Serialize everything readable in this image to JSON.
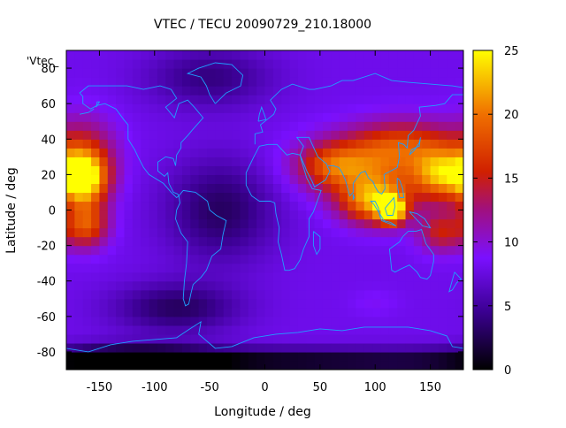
{
  "title": "VTEC / TECU 20090729_210.18000",
  "legend_key": "'Vtec_",
  "xlabel": "Longitude / deg",
  "ylabel": "Latitude / deg",
  "x_ticks": [
    "-150",
    "-100",
    "-50",
    "0",
    "50",
    "100",
    "150"
  ],
  "y_ticks": [
    "80",
    "60",
    "40",
    "20",
    "0",
    "-20",
    "-40",
    "-60",
    "-80"
  ],
  "colorbar_ticks": [
    "25",
    "20",
    "15",
    "10",
    "5",
    "0"
  ],
  "chart_data": {
    "type": "heatmap",
    "title": "VTEC / TECU 20090729_210.18000",
    "xlabel": "Longitude / deg",
    "ylabel": "Latitude / deg",
    "xlim": [
      -180,
      180
    ],
    "ylim": [
      -90,
      90
    ],
    "x_tick_values": [
      -150,
      -100,
      -50,
      0,
      50,
      100,
      150
    ],
    "y_tick_values": [
      80,
      60,
      40,
      20,
      0,
      -20,
      -40,
      -60,
      -80
    ],
    "color_range": [
      0,
      25
    ],
    "colorbar_tick_values": [
      25,
      20,
      15,
      10,
      5,
      0
    ],
    "colormap": "black-purple-red-orange-yellow",
    "overlay": "continent coastlines (cyan)",
    "background_level_tecu": 8,
    "features": [
      {
        "lon": -165,
        "lat": 18,
        "value": 24,
        "sigma_lon": 15,
        "sigma_lat": 10
      },
      {
        "lon": -162,
        "lat": -8,
        "value": 18,
        "sigma_lon": 14,
        "sigma_lat": 9
      },
      {
        "lon": -162,
        "lat": 30,
        "value": 14,
        "sigma_lon": 20,
        "sigma_lat": 16
      },
      {
        "lon": 100,
        "lat": 5,
        "value": 21,
        "sigma_lon": 22,
        "sigma_lat": 9
      },
      {
        "lon": 115,
        "lat": 0,
        "value": 24,
        "sigma_lon": 8,
        "sigma_lat": 5
      },
      {
        "lon": 160,
        "lat": 20,
        "value": 20,
        "sigma_lon": 18,
        "sigma_lat": 10
      },
      {
        "lon": 90,
        "lat": 25,
        "value": 17,
        "sigma_lon": 40,
        "sigma_lat": 12
      },
      {
        "lon": 130,
        "lat": 38,
        "value": 15,
        "sigma_lon": 35,
        "sigma_lat": 10
      },
      {
        "lon": 160,
        "lat": -12,
        "value": 15,
        "sigma_lon": 15,
        "sigma_lat": 8
      },
      {
        "lon": 60,
        "lat": 25,
        "value": 13,
        "sigma_lon": 20,
        "sigma_lat": 8
      },
      {
        "lon": -40,
        "lat": 0,
        "value": 3,
        "sigma_lon": 35,
        "sigma_lat": 20
      },
      {
        "lon": -50,
        "lat": 75,
        "value": 4,
        "sigma_lon": 40,
        "sigma_lat": 12
      },
      {
        "lon": -80,
        "lat": -55,
        "value": 3,
        "sigma_lon": 40,
        "sigma_lat": 10
      },
      {
        "lon": 0,
        "lat": -85,
        "value": 0.5,
        "sigma_lon": 200,
        "sigma_lat": 5
      },
      {
        "lon": -120,
        "lat": -85,
        "value": 1,
        "sigma_lon": 50,
        "sigma_lat": 6
      },
      {
        "lon": 100,
        "lat": -52,
        "value": 9,
        "sigma_lon": 15,
        "sigma_lat": 5
      }
    ]
  }
}
